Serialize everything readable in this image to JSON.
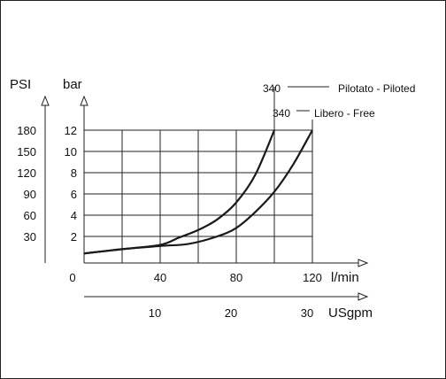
{
  "chart_data": {
    "type": "line",
    "title": "",
    "x_axes": {
      "primary": {
        "label": "l/min",
        "ticks": [
          "0",
          "40",
          "80",
          "120"
        ],
        "range": [
          0,
          120
        ]
      },
      "secondary": {
        "label": "USgpm",
        "ticks": [
          "10",
          "20",
          "30"
        ]
      }
    },
    "y_axes": {
      "psi": {
        "label": "PSI",
        "ticks": [
          "30",
          "60",
          "90",
          "120",
          "150",
          "180"
        ]
      },
      "bar": {
        "label": "bar",
        "ticks": [
          "2",
          "4",
          "6",
          "8",
          "10",
          "12"
        ],
        "range": [
          0,
          12
        ]
      }
    },
    "grid": true,
    "series": [
      {
        "name": "Pilotato - Piloted",
        "annotation_value": "340",
        "points": [
          [
            0,
            0.4
          ],
          [
            20,
            0.8
          ],
          [
            40,
            1.2
          ],
          [
            50,
            1.9
          ],
          [
            60,
            2.6
          ],
          [
            70,
            3.6
          ],
          [
            80,
            5.2
          ],
          [
            90,
            7.8
          ],
          [
            100,
            12.0
          ]
        ]
      },
      {
        "name": "Libero - Free",
        "annotation_value": "340",
        "points": [
          [
            0,
            0.4
          ],
          [
            20,
            0.8
          ],
          [
            40,
            1.1
          ],
          [
            55,
            1.3
          ],
          [
            70,
            2.0
          ],
          [
            80,
            2.8
          ],
          [
            90,
            4.3
          ],
          [
            100,
            6.2
          ],
          [
            110,
            8.8
          ],
          [
            120,
            12.0
          ]
        ]
      }
    ]
  }
}
